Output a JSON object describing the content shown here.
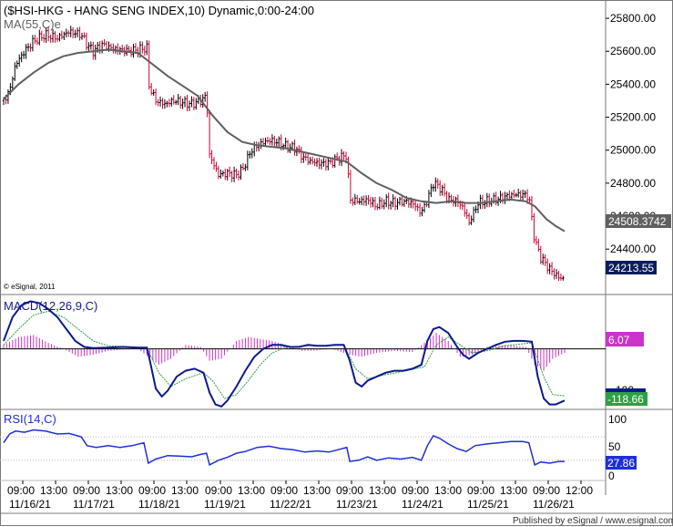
{
  "header": {
    "title": "($HSI-HKG - HANG SENG INDEX,10) Dynamic,0:00-24:00",
    "ma_label": "MA(55,C)e",
    "copyright": "© eSignal, 2011"
  },
  "footer": {
    "published": "Published by eSignal / www.esignal.com"
  },
  "colors": {
    "candle_up": "#000000",
    "candle_down": "#cc0033",
    "ma_line": "#606060",
    "macd_line": "#0d1a8c",
    "signal_line": "#2ea043",
    "histogram": "#cc33cc",
    "rsi_line": "#1f2fd6",
    "grid": "#bbbbbb"
  },
  "chart_data": [
    {
      "type": "candlestick",
      "panel": "price",
      "title": "($HSI-HKG - HANG SENG INDEX,10) Dynamic,0:00-24:00",
      "ylim": [
        24130,
        25900
      ],
      "y_ticks": [
        "25800.00",
        "25600.00",
        "25400.00",
        "25200.00",
        "25000.00",
        "24800.00",
        "24600.00",
        "24400.00"
      ],
      "current_price": "24213.55",
      "ma_value": "24508.3742",
      "ma_label": "MA(55,C)e",
      "x_labels_time": [
        "09:00",
        "13:00",
        "09:00",
        "13:00",
        "09:00",
        "13:00",
        "09:00",
        "13:00",
        "09:00",
        "13:00",
        "09:00",
        "13:00",
        "09:00",
        "13:00",
        "09:00",
        "13:00",
        "09:00",
        "12:00"
      ],
      "x_labels_date": [
        "11/16/21",
        "11/17/21",
        "11/18/21",
        "11/19/21",
        "11/22/21",
        "11/23/21",
        "11/24/21",
        "11/25/21",
        "11/26/21"
      ],
      "price_path": [
        [
          0,
          25300
        ],
        [
          4,
          25360
        ],
        [
          8,
          25520
        ],
        [
          14,
          25600
        ],
        [
          20,
          25660
        ],
        [
          28,
          25700
        ],
        [
          36,
          25680
        ],
        [
          44,
          25720
        ],
        [
          52,
          25700
        ],
        [
          56,
          25640
        ],
        [
          60,
          25600
        ],
        [
          66,
          25640
        ],
        [
          72,
          25620
        ],
        [
          78,
          25610
        ],
        [
          84,
          25600
        ],
        [
          90,
          25610
        ],
        [
          96,
          25620
        ],
        [
          97,
          25400
        ],
        [
          102,
          25300
        ],
        [
          108,
          25280
        ],
        [
          114,
          25300
        ],
        [
          120,
          25290
        ],
        [
          126,
          25280
        ],
        [
          132,
          25300
        ],
        [
          136,
          25330
        ],
        [
          138,
          24970
        ],
        [
          144,
          24850
        ],
        [
          150,
          24860
        ],
        [
          156,
          24850
        ],
        [
          160,
          24880
        ],
        [
          166,
          25000
        ],
        [
          172,
          25040
        ],
        [
          178,
          25060
        ],
        [
          184,
          25050
        ],
        [
          190,
          25020
        ],
        [
          196,
          25010
        ],
        [
          200,
          24960
        ],
        [
          206,
          24930
        ],
        [
          212,
          24920
        ],
        [
          218,
          24920
        ],
        [
          224,
          24950
        ],
        [
          230,
          24970
        ],
        [
          232,
          24700
        ],
        [
          238,
          24690
        ],
        [
          244,
          24700
        ],
        [
          250,
          24660
        ],
        [
          256,
          24690
        ],
        [
          262,
          24680
        ],
        [
          268,
          24690
        ],
        [
          274,
          24680
        ],
        [
          280,
          24620
        ],
        [
          284,
          24700
        ],
        [
          288,
          24800
        ],
        [
          292,
          24780
        ],
        [
          298,
          24700
        ],
        [
          304,
          24690
        ],
        [
          308,
          24650
        ],
        [
          312,
          24560
        ],
        [
          318,
          24680
        ],
        [
          324,
          24690
        ],
        [
          330,
          24700
        ],
        [
          336,
          24720
        ],
        [
          342,
          24730
        ],
        [
          348,
          24730
        ],
        [
          352,
          24720
        ],
        [
          356,
          24450
        ],
        [
          360,
          24350
        ],
        [
          364,
          24300
        ],
        [
          368,
          24260
        ],
        [
          372,
          24230
        ],
        [
          376,
          24215
        ]
      ],
      "ma55": [
        [
          0,
          25310
        ],
        [
          10,
          25400
        ],
        [
          20,
          25470
        ],
        [
          30,
          25530
        ],
        [
          40,
          25570
        ],
        [
          50,
          25590
        ],
        [
          60,
          25600
        ],
        [
          70,
          25610
        ],
        [
          80,
          25600
        ],
        [
          90,
          25590
        ],
        [
          100,
          25520
        ],
        [
          110,
          25450
        ],
        [
          120,
          25390
        ],
        [
          130,
          25330
        ],
        [
          140,
          25210
        ],
        [
          150,
          25110
        ],
        [
          160,
          25050
        ],
        [
          170,
          25030
        ],
        [
          180,
          25020
        ],
        [
          190,
          25010
        ],
        [
          200,
          24990
        ],
        [
          210,
          24970
        ],
        [
          220,
          24950
        ],
        [
          230,
          24930
        ],
        [
          240,
          24860
        ],
        [
          250,
          24800
        ],
        [
          260,
          24760
        ],
        [
          270,
          24710
        ],
        [
          280,
          24690
        ],
        [
          290,
          24680
        ],
        [
          300,
          24690
        ],
        [
          310,
          24680
        ],
        [
          320,
          24680
        ],
        [
          330,
          24690
        ],
        [
          340,
          24700
        ],
        [
          350,
          24690
        ],
        [
          356,
          24660
        ],
        [
          364,
          24580
        ],
        [
          370,
          24540
        ],
        [
          376,
          24508
        ]
      ]
    },
    {
      "type": "macd",
      "panel": "macd",
      "label": "MACD(12,26,9,C)",
      "ylim": [
        -150,
        130
      ],
      "y_ticks": [
        "100"
      ],
      "value_label": "6.07",
      "signal_value_label": "-118.66",
      "macd": [
        [
          0,
          20
        ],
        [
          6,
          80
        ],
        [
          12,
          110
        ],
        [
          18,
          120
        ],
        [
          24,
          115
        ],
        [
          30,
          100
        ],
        [
          36,
          80
        ],
        [
          42,
          50
        ],
        [
          48,
          20
        ],
        [
          54,
          5
        ],
        [
          60,
          2
        ],
        [
          70,
          3
        ],
        [
          80,
          5
        ],
        [
          90,
          3
        ],
        [
          96,
          3
        ],
        [
          98,
          -30
        ],
        [
          102,
          -100
        ],
        [
          106,
          -120
        ],
        [
          110,
          -105
        ],
        [
          116,
          -70
        ],
        [
          122,
          -55
        ],
        [
          128,
          -50
        ],
        [
          134,
          -60
        ],
        [
          138,
          -110
        ],
        [
          142,
          -140
        ],
        [
          146,
          -145
        ],
        [
          150,
          -130
        ],
        [
          156,
          -95
        ],
        [
          162,
          -55
        ],
        [
          168,
          -20
        ],
        [
          174,
          0
        ],
        [
          180,
          10
        ],
        [
          186,
          10
        ],
        [
          192,
          5
        ],
        [
          198,
          5
        ],
        [
          204,
          10
        ],
        [
          210,
          8
        ],
        [
          216,
          8
        ],
        [
          222,
          10
        ],
        [
          228,
          10
        ],
        [
          232,
          -30
        ],
        [
          236,
          -85
        ],
        [
          240,
          -95
        ],
        [
          244,
          -80
        ],
        [
          250,
          -70
        ],
        [
          256,
          -60
        ],
        [
          262,
          -55
        ],
        [
          268,
          -55
        ],
        [
          274,
          -50
        ],
        [
          280,
          -40
        ],
        [
          284,
          20
        ],
        [
          288,
          50
        ],
        [
          292,
          55
        ],
        [
          298,
          40
        ],
        [
          304,
          5
        ],
        [
          308,
          -15
        ],
        [
          312,
          -25
        ],
        [
          318,
          -10
        ],
        [
          324,
          0
        ],
        [
          330,
          10
        ],
        [
          336,
          18
        ],
        [
          342,
          20
        ],
        [
          348,
          20
        ],
        [
          354,
          18
        ],
        [
          358,
          -70
        ],
        [
          362,
          -125
        ],
        [
          366,
          -140
        ],
        [
          370,
          -140
        ],
        [
          376,
          -130
        ]
      ],
      "signal": [
        [
          0,
          10
        ],
        [
          10,
          50
        ],
        [
          20,
          85
        ],
        [
          30,
          95
        ],
        [
          40,
          80
        ],
        [
          50,
          50
        ],
        [
          60,
          20
        ],
        [
          70,
          8
        ],
        [
          80,
          6
        ],
        [
          96,
          3
        ],
        [
          104,
          -60
        ],
        [
          112,
          -95
        ],
        [
          122,
          -75
        ],
        [
          134,
          -60
        ],
        [
          140,
          -80
        ],
        [
          148,
          -125
        ],
        [
          156,
          -115
        ],
        [
          164,
          -80
        ],
        [
          172,
          -40
        ],
        [
          180,
          -10
        ],
        [
          190,
          5
        ],
        [
          204,
          8
        ],
        [
          228,
          9
        ],
        [
          236,
          -50
        ],
        [
          244,
          -75
        ],
        [
          256,
          -65
        ],
        [
          270,
          -55
        ],
        [
          282,
          -45
        ],
        [
          290,
          10
        ],
        [
          298,
          30
        ],
        [
          306,
          10
        ],
        [
          314,
          -10
        ],
        [
          324,
          -5
        ],
        [
          336,
          8
        ],
        [
          354,
          15
        ],
        [
          362,
          -70
        ],
        [
          368,
          -115
        ],
        [
          376,
          -118
        ]
      ],
      "hist": [
        [
          0,
          10
        ],
        [
          10,
          30
        ],
        [
          20,
          35
        ],
        [
          30,
          15
        ],
        [
          40,
          0
        ],
        [
          50,
          -20
        ],
        [
          60,
          -15
        ],
        [
          70,
          -5
        ],
        [
          80,
          -2
        ],
        [
          90,
          0
        ],
        [
          104,
          -40
        ],
        [
          112,
          -25
        ],
        [
          122,
          10
        ],
        [
          132,
          5
        ],
        [
          138,
          -30
        ],
        [
          146,
          -25
        ],
        [
          156,
          20
        ],
        [
          164,
          30
        ],
        [
          172,
          25
        ],
        [
          180,
          20
        ],
        [
          190,
          8
        ],
        [
          200,
          -5
        ],
        [
          210,
          -4
        ],
        [
          220,
          0
        ],
        [
          232,
          -15
        ],
        [
          240,
          -20
        ],
        [
          250,
          -10
        ],
        [
          262,
          -5
        ],
        [
          274,
          -8
        ],
        [
          282,
          15
        ],
        [
          290,
          40
        ],
        [
          298,
          20
        ],
        [
          306,
          -20
        ],
        [
          314,
          -15
        ],
        [
          324,
          5
        ],
        [
          336,
          10
        ],
        [
          350,
          5
        ],
        [
          356,
          -40
        ],
        [
          362,
          -55
        ],
        [
          368,
          -25
        ],
        [
          376,
          -10
        ]
      ]
    },
    {
      "type": "line",
      "panel": "rsi",
      "label": "RSI(14,C)",
      "ylim": [
        0,
        100
      ],
      "y_ticks": [
        "100",
        "50",
        "0"
      ],
      "value_label": "27.86",
      "rsi": [
        [
          0,
          60
        ],
        [
          4,
          75
        ],
        [
          8,
          80
        ],
        [
          14,
          78
        ],
        [
          20,
          82
        ],
        [
          28,
          80
        ],
        [
          36,
          75
        ],
        [
          44,
          76
        ],
        [
          52,
          70
        ],
        [
          56,
          55
        ],
        [
          62,
          52
        ],
        [
          70,
          55
        ],
        [
          78,
          52
        ],
        [
          86,
          55
        ],
        [
          94,
          60
        ],
        [
          97,
          25
        ],
        [
          102,
          32
        ],
        [
          110,
          38
        ],
        [
          118,
          37
        ],
        [
          126,
          36
        ],
        [
          132,
          40
        ],
        [
          136,
          42
        ],
        [
          138,
          22
        ],
        [
          144,
          30
        ],
        [
          150,
          35
        ],
        [
          156,
          42
        ],
        [
          162,
          45
        ],
        [
          170,
          52
        ],
        [
          178,
          54
        ],
        [
          186,
          50
        ],
        [
          194,
          48
        ],
        [
          202,
          44
        ],
        [
          210,
          46
        ],
        [
          218,
          44
        ],
        [
          224,
          48
        ],
        [
          230,
          52
        ],
        [
          232,
          28
        ],
        [
          238,
          30
        ],
        [
          244,
          36
        ],
        [
          250,
          30
        ],
        [
          258,
          34
        ],
        [
          266,
          32
        ],
        [
          274,
          35
        ],
        [
          280,
          30
        ],
        [
          284,
          55
        ],
        [
          288,
          72
        ],
        [
          292,
          68
        ],
        [
          298,
          58
        ],
        [
          304,
          50
        ],
        [
          310,
          45
        ],
        [
          316,
          55
        ],
        [
          324,
          58
        ],
        [
          332,
          60
        ],
        [
          340,
          62
        ],
        [
          348,
          62
        ],
        [
          352,
          60
        ],
        [
          356,
          22
        ],
        [
          360,
          27
        ],
        [
          366,
          25
        ],
        [
          372,
          28
        ],
        [
          376,
          28
        ]
      ]
    }
  ]
}
